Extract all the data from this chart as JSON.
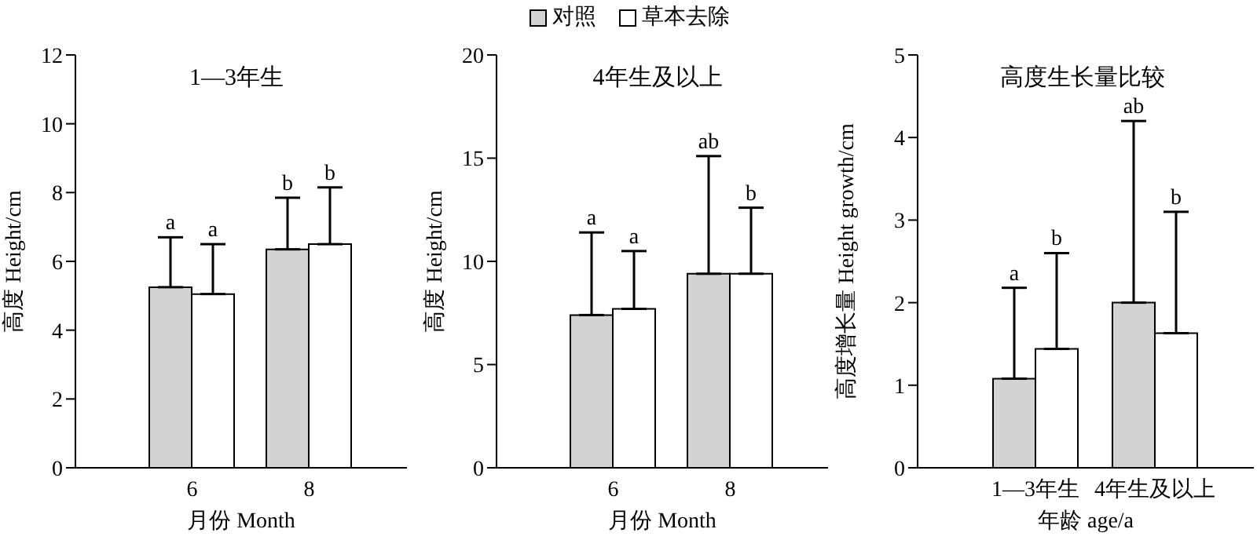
{
  "chart_data": [
    {
      "type": "bar",
      "title": "1—3年生",
      "xlabel": "月份 Month",
      "ylabel": "高度 Height/cm",
      "categories": [
        "6",
        "8"
      ],
      "ylim": [
        0,
        12
      ],
      "yticks": [
        0,
        2,
        4,
        6,
        8,
        10,
        12
      ],
      "grid": false,
      "legend": false,
      "series": [
        {
          "color": "#d3d3d3",
          "values": [
            5.25,
            6.35
          ],
          "errors": [
            [
              5.25,
              6.7
            ],
            [
              6.35,
              7.85
            ]
          ]
        },
        {
          "color": "#ffffff",
          "values": [
            5.05,
            6.5
          ],
          "errors": [
            [
              5.05,
              6.5
            ],
            [
              6.5,
              8.15
            ]
          ]
        }
      ],
      "annotations": [
        "a",
        "a",
        "b",
        "b"
      ]
    },
    {
      "type": "bar",
      "title": "4年生及以上",
      "xlabel": "月份 Month",
      "ylabel": "高度 Height/cm",
      "categories": [
        "6",
        "8"
      ],
      "ylim": [
        0,
        20
      ],
      "yticks": [
        0,
        5,
        10,
        15,
        20
      ],
      "grid": false,
      "legend": "top",
      "series": [
        {
          "name": "对照",
          "color": "#d3d3d3",
          "values": [
            7.4,
            9.4
          ],
          "errors": [
            [
              7.4,
              11.4
            ],
            [
              9.4,
              15.1
            ]
          ]
        },
        {
          "name": "草本去除",
          "color": "#ffffff",
          "values": [
            7.7,
            9.4
          ],
          "errors": [
            [
              7.7,
              10.5
            ],
            [
              9.4,
              12.6
            ]
          ]
        }
      ],
      "annotations": [
        "a",
        "a",
        "ab",
        "b"
      ]
    },
    {
      "type": "bar",
      "title": "高度生长量比较",
      "xlabel": "年龄 age/a",
      "ylabel": "高度增长量 Height growth/cm",
      "categories": [
        "1—3年生",
        "4年生及以上"
      ],
      "ylim": [
        0,
        5
      ],
      "yticks": [
        0,
        1,
        2,
        3,
        4,
        5
      ],
      "grid": false,
      "legend": false,
      "series": [
        {
          "color": "#d3d3d3",
          "values": [
            1.08,
            2.0
          ],
          "errors": [
            [
              1.08,
              2.18
            ],
            [
              2.0,
              4.2
            ]
          ]
        },
        {
          "color": "#ffffff",
          "values": [
            1.44,
            1.63
          ],
          "errors": [
            [
              1.44,
              2.6
            ],
            [
              1.63,
              3.1
            ]
          ]
        }
      ],
      "annotations": [
        "a",
        "b",
        "ab",
        "b"
      ]
    }
  ]
}
